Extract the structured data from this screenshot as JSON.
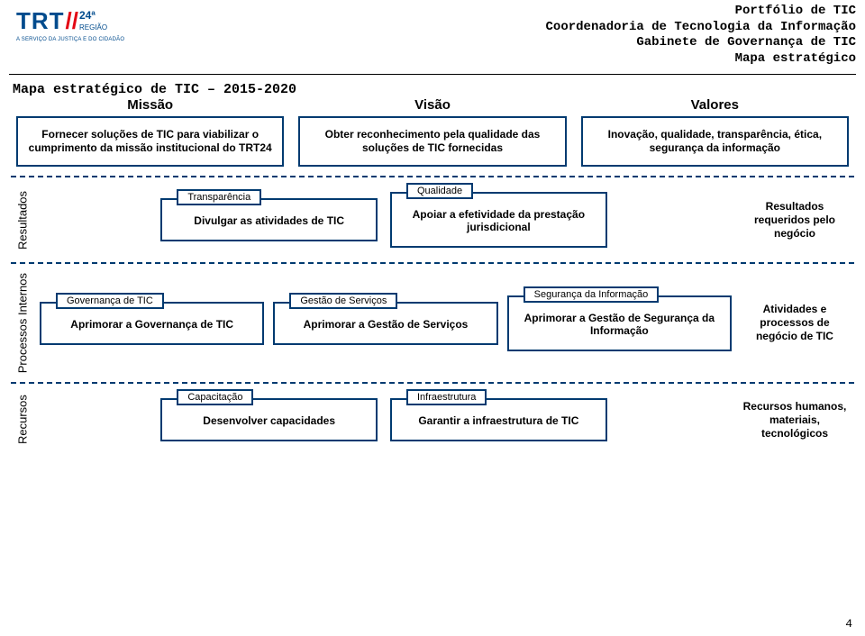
{
  "colors": {
    "border": "#003a70",
    "accentRed": "#e30613",
    "bg": "#ffffff"
  },
  "logo": {
    "trt": "TRT",
    "num": "24ª",
    "regiao": "REGIÃO",
    "sub": "A SERVIÇO DA JUSTIÇA E DO CIDADÃO"
  },
  "header": {
    "l1": "Portfólio de TIC",
    "l2": "Coordenadoria de Tecnologia da Informação",
    "l3": "Gabinete de Governança de TIC",
    "l4": "Mapa estratégico"
  },
  "title": "Mapa estratégico de TIC – 2015-2020",
  "mvv": {
    "missao": {
      "heading": "Missão",
      "text": "Fornecer soluções de TIC para viabilizar o cumprimento da missão institucional do TRT24"
    },
    "visao": {
      "heading": "Visão",
      "text": "Obter reconhecimento pela qualidade das soluções de TIC fornecidas"
    },
    "valores": {
      "heading": "Valores",
      "text": "Inovação, qualidade, transparência, ética, segurança da informação"
    }
  },
  "lanes": {
    "resultados": {
      "label": "Resultados",
      "items": [
        {
          "tag": "Transparência",
          "text": "Divulgar as atividades de TIC"
        },
        {
          "tag": "Qualidade",
          "text": "Apoiar a efetividade da prestação jurisdicional"
        }
      ],
      "side": "Resultados requeridos pelo negócio"
    },
    "processos": {
      "label": "Processos Internos",
      "items": [
        {
          "tag": "Governança de TIC",
          "text": "Aprimorar a Governança de TIC"
        },
        {
          "tag": "Gestão de Serviços",
          "text": "Aprimorar a Gestão de Serviços"
        },
        {
          "tag": "Segurança da Informação",
          "text": "Aprimorar a Gestão de Segurança da Informação"
        }
      ],
      "side": "Atividades e processos de negócio de TIC"
    },
    "recursos": {
      "label": "Recursos",
      "items": [
        {
          "tag": "Capacitação",
          "text": "Desenvolver capacidades"
        },
        {
          "tag": "Infraestrutura",
          "text": "Garantir a infraestrutura de TIC"
        }
      ],
      "side": "Recursos humanos, materiais, tecnológicos"
    }
  },
  "pageNumber": "4"
}
